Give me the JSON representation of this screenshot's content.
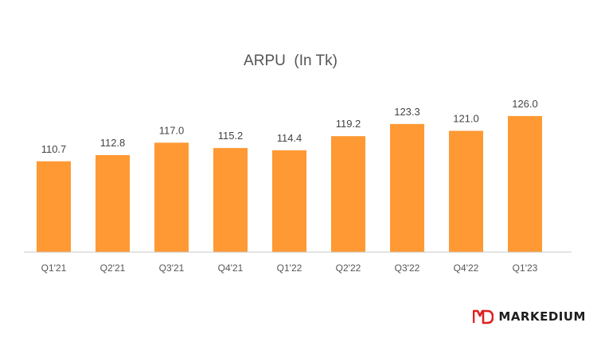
{
  "chart_data": {
    "type": "bar",
    "title": "ARPU  (In Tk)",
    "xlabel": "",
    "ylabel": "",
    "categories": [
      "Q1'21",
      "Q2'21",
      "Q3'21",
      "Q4'21",
      "Q1'22",
      "Q2'22",
      "Q3'22",
      "Q4'22",
      "Q1'23"
    ],
    "values": [
      110.7,
      112.8,
      117.0,
      115.2,
      114.4,
      119.2,
      123.3,
      121.0,
      126.0
    ],
    "value_labels": [
      "110.7",
      "112.8",
      "117.0",
      "115.2",
      "114.4",
      "119.2",
      "123.3",
      "121.0",
      "126.0"
    ],
    "ylim": [
      80,
      130
    ],
    "grid": false,
    "legend": "none",
    "bar_color": "#FF9933"
  },
  "brand": {
    "name": "MARKEDIUM",
    "logo_color": "#E02020"
  }
}
